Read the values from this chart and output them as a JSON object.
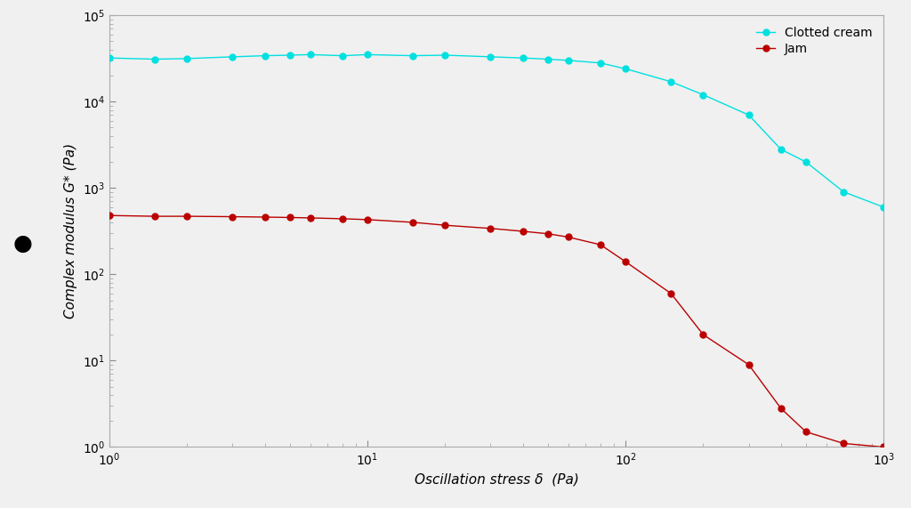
{
  "clotted_cream_x": [
    1.0,
    1.5,
    2.0,
    3.0,
    4.0,
    5.0,
    6.0,
    8.0,
    10.0,
    15.0,
    20.0,
    30.0,
    40.0,
    50.0,
    60.0,
    80.0,
    100.0,
    150.0,
    200.0,
    300.0,
    400.0,
    500.0,
    700.0,
    1000.0
  ],
  "clotted_cream_y": [
    32000,
    31000,
    31500,
    33000,
    34000,
    34500,
    35000,
    34000,
    35000,
    34000,
    34500,
    33000,
    32000,
    31000,
    30000,
    28000,
    24000,
    17000,
    12000,
    7000,
    2800,
    2000,
    900,
    600
  ],
  "jam_x": [
    1.0,
    1.5,
    2.0,
    3.0,
    4.0,
    5.0,
    6.0,
    8.0,
    10.0,
    15.0,
    20.0,
    30.0,
    40.0,
    50.0,
    60.0,
    80.0,
    100.0,
    150.0,
    200.0,
    300.0,
    400.0,
    500.0,
    700.0,
    1000.0
  ],
  "jam_y": [
    480,
    470,
    470,
    465,
    460,
    455,
    450,
    440,
    430,
    400,
    370,
    340,
    315,
    295,
    270,
    220,
    140,
    60,
    20,
    9.0,
    2.8,
    1.5,
    1.1,
    1.0
  ],
  "clotted_cream_color": "#00e0e0",
  "jam_color": "#bb0000",
  "xlabel": "Oscillation stress δ  (Pa)",
  "ylabel": "Complex modulus G* (Pa)",
  "xlim": [
    1.0,
    1000.0
  ],
  "ylim": [
    1.0,
    100000.0
  ],
  "legend_labels": [
    "Clotted cream",
    "Jam"
  ],
  "background_color": "#f0f0f0",
  "plot_bg_color": "#f0f0f0",
  "marker_size": 5,
  "line_width": 1.0,
  "figsize": [
    10.24,
    5.71
  ],
  "dpi": 100
}
